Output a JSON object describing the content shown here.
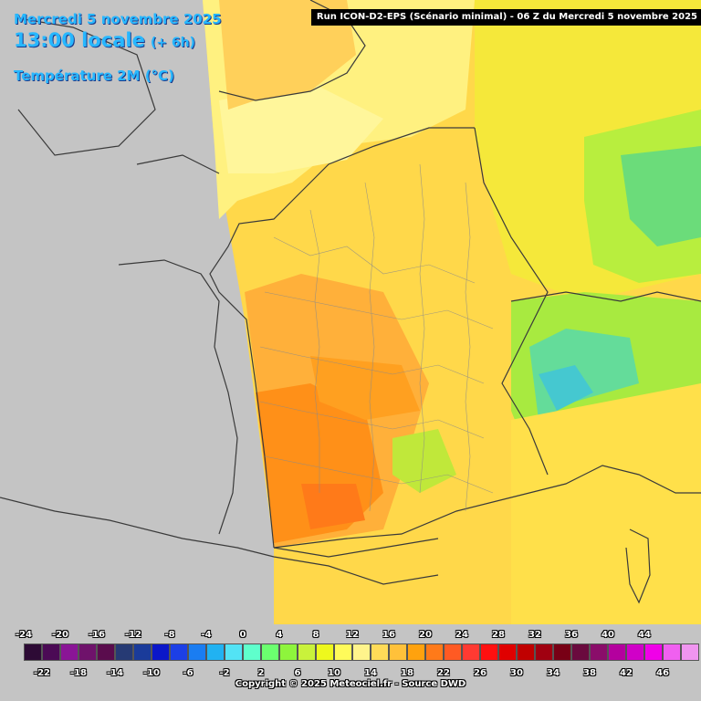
{
  "header": {
    "date": "Mercredi 5 novembre 2025",
    "time": "13:00 locale",
    "offset": "(+ 6h)",
    "variable": "Température 2M (°C)"
  },
  "run_banner": "Run ICON-D2-EPS (Scénario minimal) - 06 Z du Mercredi 5 novembre 2025",
  "legend": {
    "top_labels": [
      "-24",
      "-20",
      "-16",
      "-12",
      "-8",
      "-4",
      "0",
      "4",
      "8",
      "12",
      "16",
      "20",
      "24",
      "28",
      "32",
      "36",
      "40",
      "44"
    ],
    "bottom_labels": [
      "-22",
      "-18",
      "-14",
      "-10",
      "-6",
      "-2",
      "2",
      "6",
      "10",
      "14",
      "18",
      "22",
      "26",
      "30",
      "34",
      "38",
      "42",
      "46"
    ],
    "colors": [
      "#2d0a35",
      "#4b0a55",
      "#8a1596",
      "#6f126b",
      "#5a0c4d",
      "#263a74",
      "#1a3b9a",
      "#0b17c9",
      "#1c3fe6",
      "#1a7df2",
      "#21b2f2",
      "#53e3f5",
      "#5fffcc",
      "#6bff6f",
      "#8ef53c",
      "#c9f23b",
      "#eef81d",
      "#fffb5a",
      "#fff48c",
      "#ffdb58",
      "#ffc13a",
      "#ffa20e",
      "#ff7a19",
      "#ff5a23",
      "#ff3a32",
      "#ff1010",
      "#e00000",
      "#c00000",
      "#a00010",
      "#780015",
      "#6a0a3e",
      "#8a0d6a",
      "#b4009e",
      "#d000c8",
      "#f000e8",
      "#f060f0",
      "#f095f0"
    ]
  },
  "copyright": "Copyright © 2025 Meteociel.fr - Source DWD",
  "colors": {
    "background": "#c4c4c4",
    "sea_outside": "#c4c4c4",
    "accent_title": "#27b7ff"
  }
}
